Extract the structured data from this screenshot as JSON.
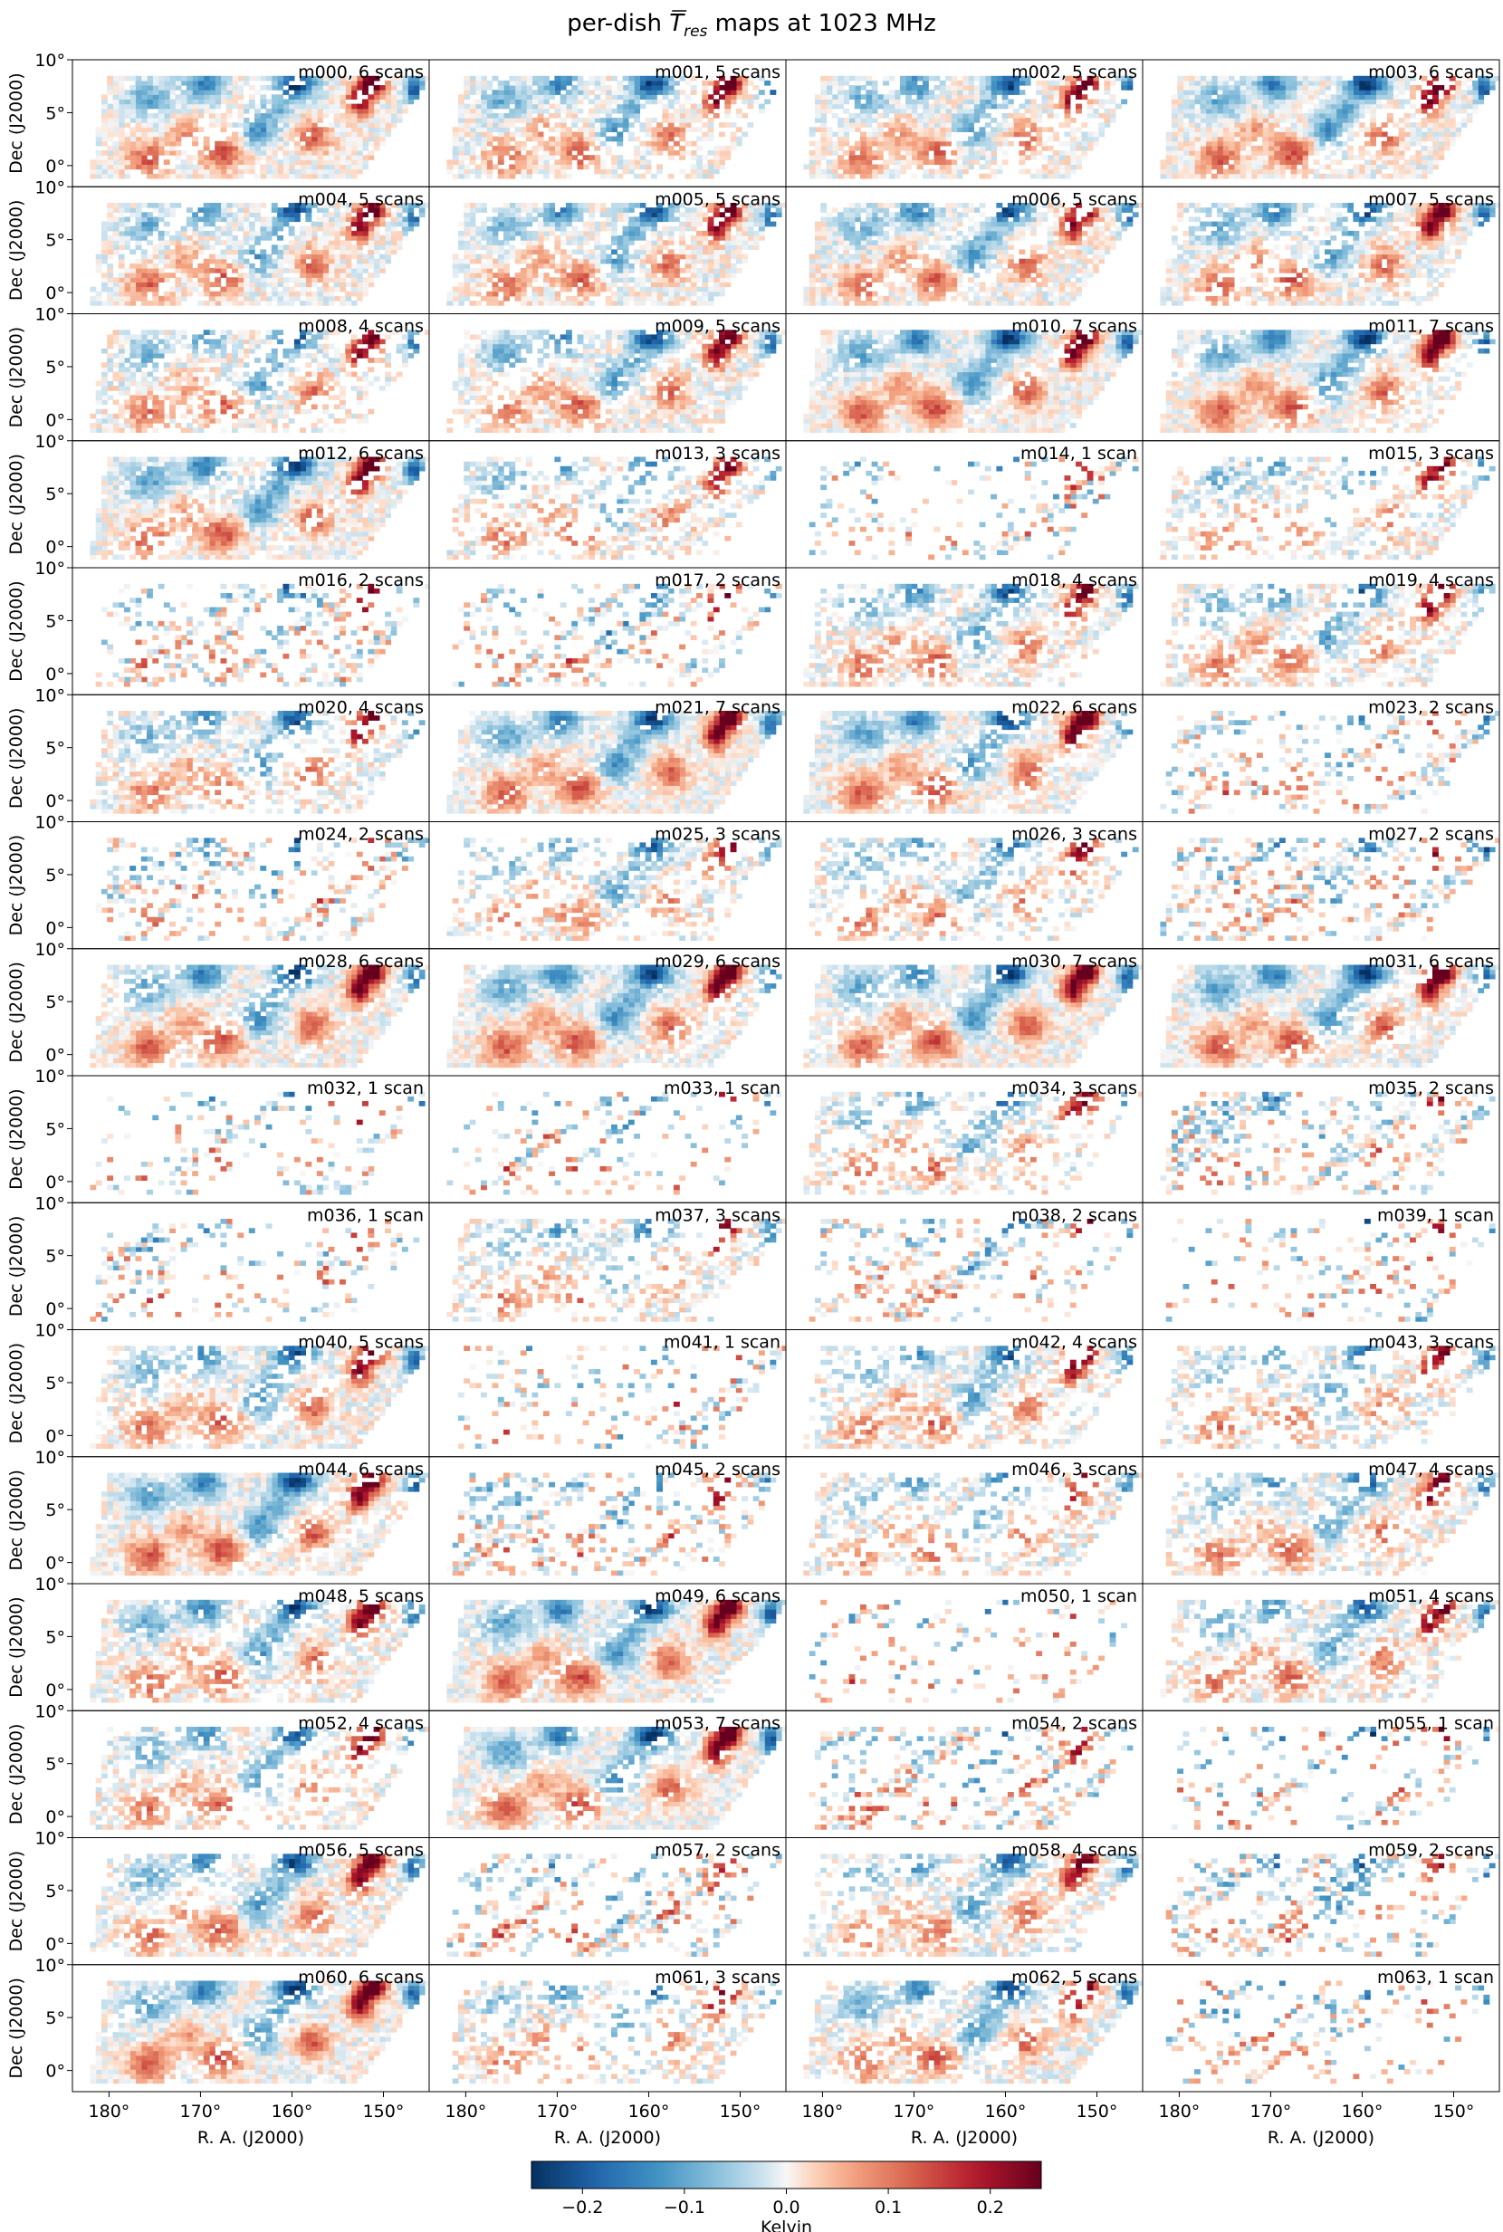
{
  "chart_data": {
    "type": "heatmap",
    "title_main": "per-dish ",
    "title_symbol": "T",
    "title_sub": "res",
    "title_rest": " maps at 1023 MHz",
    "xlabel": "R. A. (J2000)",
    "ylabel": "Dec (J2000)",
    "x_ticks": [
      "180°",
      "170°",
      "160°",
      "150°"
    ],
    "x_tick_values": [
      180,
      170,
      160,
      150
    ],
    "xlim": [
      184,
      145
    ],
    "y_ticks": [
      "10°",
      "5°",
      "0°"
    ],
    "y_tick_values": [
      10,
      5,
      0
    ],
    "ylim": [
      -2,
      10
    ],
    "grid": "off",
    "colormap": "RdBu_r",
    "colors": {
      "low": "#053061",
      "mid": "#f7f7f7",
      "high": "#67001f"
    },
    "colorbar": {
      "label": "Kelvin",
      "range": [
        -0.25,
        0.25
      ],
      "ticks": [
        "−0.2",
        "−0.1",
        "0.0",
        "0.1",
        "0.2"
      ],
      "tick_values": [
        -0.2,
        -0.1,
        0.0,
        0.1,
        0.2
      ]
    },
    "panels": [
      {
        "dish": "m000",
        "scans": 6,
        "label": "m000, 6 scans"
      },
      {
        "dish": "m001",
        "scans": 5,
        "label": "m001, 5 scans"
      },
      {
        "dish": "m002",
        "scans": 5,
        "label": "m002, 5 scans"
      },
      {
        "dish": "m003",
        "scans": 6,
        "label": "m003, 6 scans"
      },
      {
        "dish": "m004",
        "scans": 5,
        "label": "m004, 5 scans"
      },
      {
        "dish": "m005",
        "scans": 5,
        "label": "m005, 5 scans"
      },
      {
        "dish": "m006",
        "scans": 5,
        "label": "m006, 5 scans"
      },
      {
        "dish": "m007",
        "scans": 5,
        "label": "m007, 5 scans"
      },
      {
        "dish": "m008",
        "scans": 4,
        "label": "m008, 4 scans"
      },
      {
        "dish": "m009",
        "scans": 5,
        "label": "m009, 5 scans"
      },
      {
        "dish": "m010",
        "scans": 7,
        "label": "m010, 7 scans"
      },
      {
        "dish": "m011",
        "scans": 7,
        "label": "m011, 7 scans"
      },
      {
        "dish": "m012",
        "scans": 6,
        "label": "m012, 6 scans"
      },
      {
        "dish": "m013",
        "scans": 3,
        "label": "m013, 3 scans"
      },
      {
        "dish": "m014",
        "scans": 1,
        "label": "m014, 1 scan"
      },
      {
        "dish": "m015",
        "scans": 3,
        "label": "m015, 3 scans"
      },
      {
        "dish": "m016",
        "scans": 2,
        "label": "m016, 2 scans"
      },
      {
        "dish": "m017",
        "scans": 2,
        "label": "m017, 2 scans"
      },
      {
        "dish": "m018",
        "scans": 4,
        "label": "m018, 4 scans"
      },
      {
        "dish": "m019",
        "scans": 4,
        "label": "m019, 4 scans"
      },
      {
        "dish": "m020",
        "scans": 4,
        "label": "m020, 4 scans"
      },
      {
        "dish": "m021",
        "scans": 7,
        "label": "m021, 7 scans"
      },
      {
        "dish": "m022",
        "scans": 6,
        "label": "m022, 6 scans"
      },
      {
        "dish": "m023",
        "scans": 2,
        "label": "m023, 2 scans"
      },
      {
        "dish": "m024",
        "scans": 2,
        "label": "m024, 2 scans"
      },
      {
        "dish": "m025",
        "scans": 3,
        "label": "m025, 3 scans"
      },
      {
        "dish": "m026",
        "scans": 3,
        "label": "m026, 3 scans"
      },
      {
        "dish": "m027",
        "scans": 2,
        "label": "m027, 2 scans"
      },
      {
        "dish": "m028",
        "scans": 6,
        "label": "m028, 6 scans"
      },
      {
        "dish": "m029",
        "scans": 6,
        "label": "m029, 6 scans"
      },
      {
        "dish": "m030",
        "scans": 7,
        "label": "m030, 7 scans"
      },
      {
        "dish": "m031",
        "scans": 6,
        "label": "m031, 6 scans"
      },
      {
        "dish": "m032",
        "scans": 1,
        "label": "m032, 1 scan"
      },
      {
        "dish": "m033",
        "scans": 1,
        "label": "m033, 1 scan"
      },
      {
        "dish": "m034",
        "scans": 3,
        "label": "m034, 3 scans"
      },
      {
        "dish": "m035",
        "scans": 2,
        "label": "m035, 2 scans"
      },
      {
        "dish": "m036",
        "scans": 1,
        "label": "m036, 1 scan"
      },
      {
        "dish": "m037",
        "scans": 3,
        "label": "m037, 3 scans"
      },
      {
        "dish": "m038",
        "scans": 2,
        "label": "m038, 2 scans"
      },
      {
        "dish": "m039",
        "scans": 1,
        "label": "m039, 1 scan"
      },
      {
        "dish": "m040",
        "scans": 5,
        "label": "m040, 5 scans"
      },
      {
        "dish": "m041",
        "scans": 1,
        "label": "m041, 1 scan"
      },
      {
        "dish": "m042",
        "scans": 4,
        "label": "m042, 4 scans"
      },
      {
        "dish": "m043",
        "scans": 3,
        "label": "m043, 3 scans"
      },
      {
        "dish": "m044",
        "scans": 6,
        "label": "m044, 6 scans"
      },
      {
        "dish": "m045",
        "scans": 2,
        "label": "m045, 2 scans"
      },
      {
        "dish": "m046",
        "scans": 3,
        "label": "m046, 3 scans"
      },
      {
        "dish": "m047",
        "scans": 4,
        "label": "m047, 4 scans"
      },
      {
        "dish": "m048",
        "scans": 5,
        "label": "m048, 5 scans"
      },
      {
        "dish": "m049",
        "scans": 6,
        "label": "m049, 6 scans"
      },
      {
        "dish": "m050",
        "scans": 1,
        "label": "m050, 1 scan"
      },
      {
        "dish": "m051",
        "scans": 4,
        "label": "m051, 4 scans"
      },
      {
        "dish": "m052",
        "scans": 4,
        "label": "m052, 4 scans"
      },
      {
        "dish": "m053",
        "scans": 7,
        "label": "m053, 7 scans"
      },
      {
        "dish": "m054",
        "scans": 2,
        "label": "m054, 2 scans"
      },
      {
        "dish": "m055",
        "scans": 1,
        "label": "m055, 1 scan"
      },
      {
        "dish": "m056",
        "scans": 5,
        "label": "m056, 5 scans"
      },
      {
        "dish": "m057",
        "scans": 2,
        "label": "m057, 2 scans"
      },
      {
        "dish": "m058",
        "scans": 4,
        "label": "m058, 4 scans"
      },
      {
        "dish": "m059",
        "scans": 2,
        "label": "m059, 2 scans"
      },
      {
        "dish": "m060",
        "scans": 6,
        "label": "m060, 6 scans"
      },
      {
        "dish": "m061",
        "scans": 3,
        "label": "m061, 3 scans"
      },
      {
        "dish": "m062",
        "scans": 5,
        "label": "m062, 5 scans"
      },
      {
        "dish": "m063",
        "scans": 1,
        "label": "m063, 1 scan"
      }
    ]
  }
}
